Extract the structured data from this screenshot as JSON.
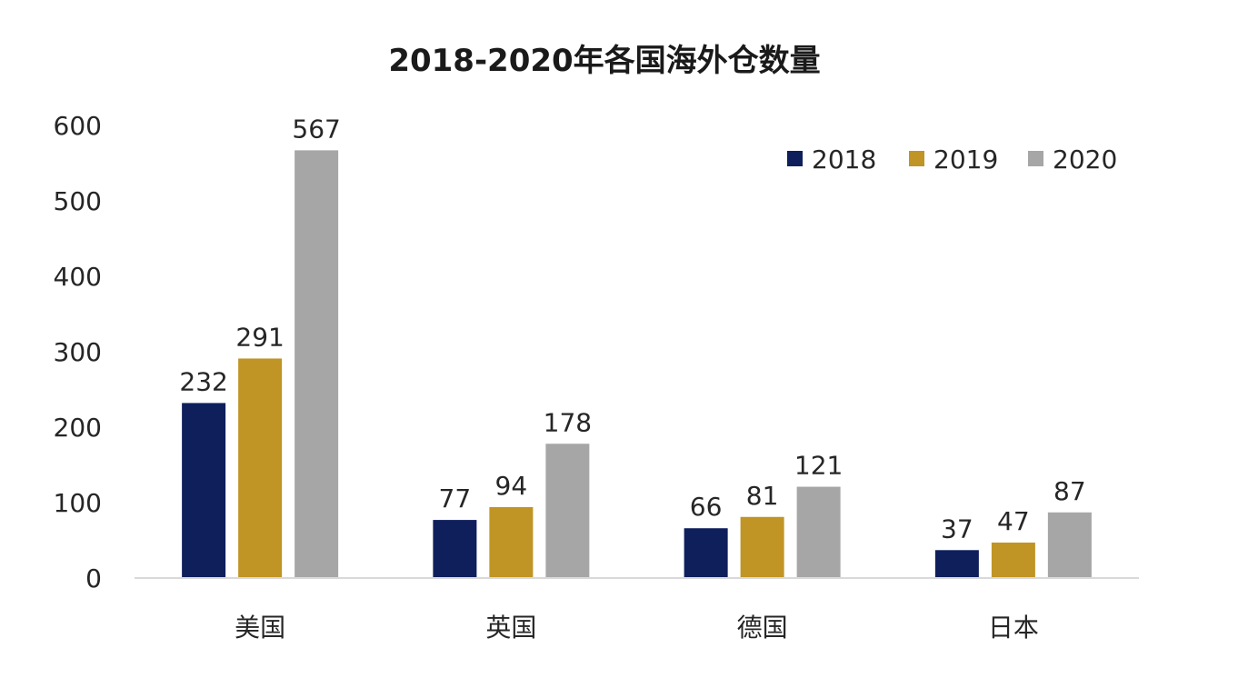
{
  "chart_data": {
    "type": "bar",
    "title": "2018-2020年各国海外仓数量",
    "categories": [
      "美国",
      "英国",
      "德国",
      "日本"
    ],
    "series": [
      {
        "name": "2018",
        "values": [
          232,
          77,
          66,
          37
        ],
        "color": "#0f1f5c"
      },
      {
        "name": "2019",
        "values": [
          291,
          94,
          81,
          47
        ],
        "color": "#c09425"
      },
      {
        "name": "2020",
        "values": [
          567,
          178,
          121,
          87
        ],
        "color": "#a6a6a6"
      }
    ],
    "ylim": [
      0,
      600
    ],
    "yticks": [
      0,
      100,
      200,
      300,
      400,
      500,
      600
    ],
    "grid": false,
    "legend_position": "top-right",
    "data_labels": true
  }
}
